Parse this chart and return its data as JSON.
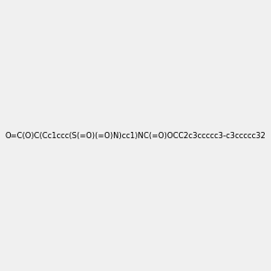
{
  "smiles": "O=C(O)C(Cc1ccc(S(=O)(=O)N)cc1)NC(=O)OCC2c3ccccc3-c3ccccc32",
  "title": "",
  "bg_color": "#f0f0f0",
  "img_size": [
    300,
    300
  ]
}
